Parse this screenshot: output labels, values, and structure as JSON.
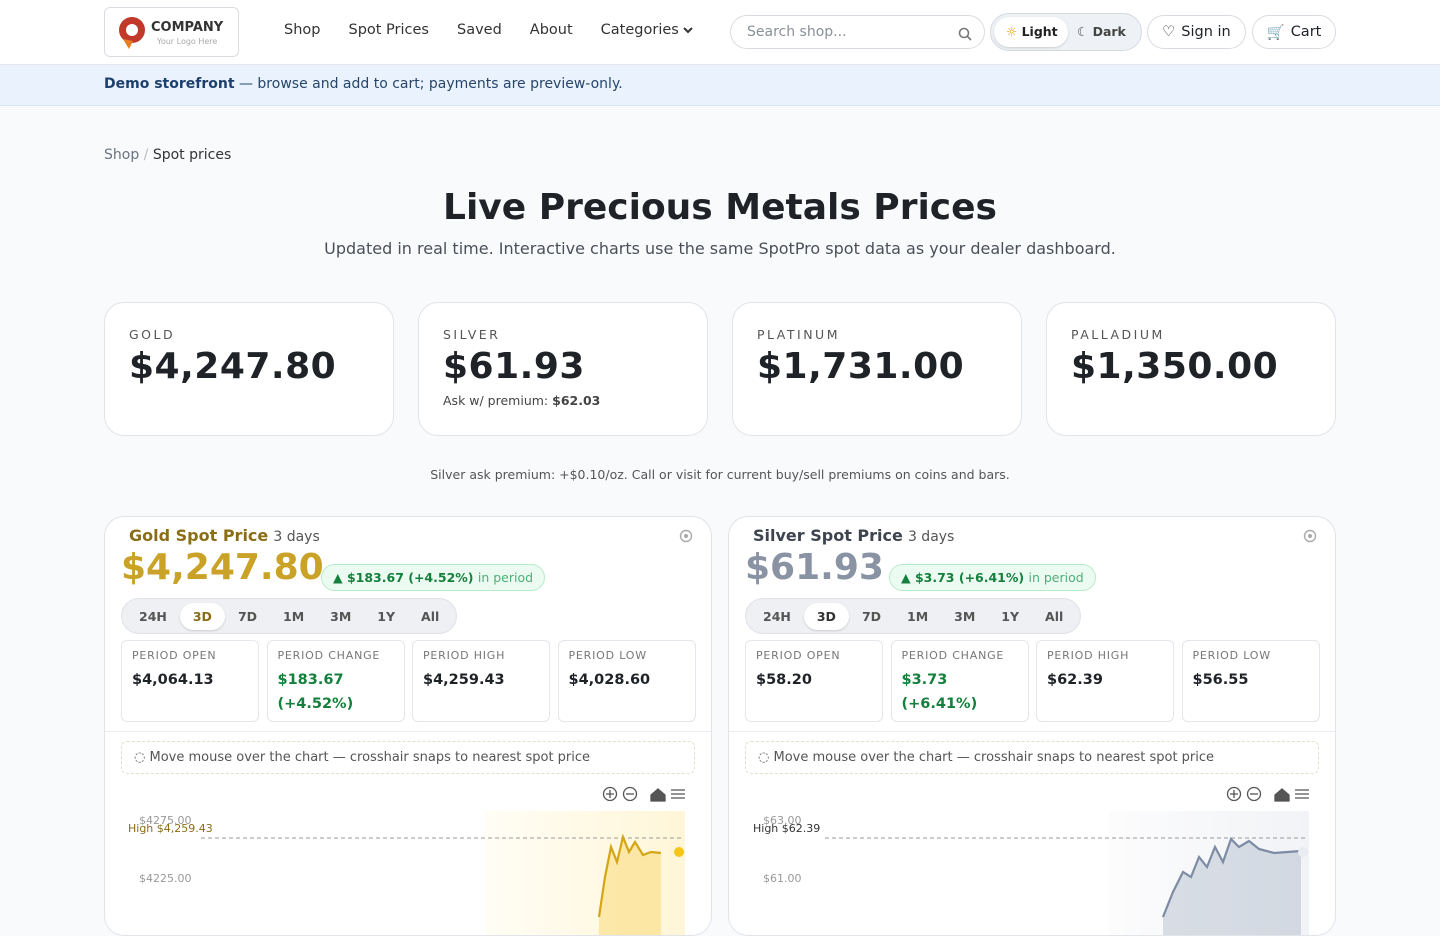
{
  "header": {
    "logo": {
      "name": "COMPANY",
      "tagline": "Your Logo Here"
    },
    "nav": [
      "Shop",
      "Spot Prices",
      "Saved",
      "About",
      "Categories"
    ],
    "search_placeholder": "Search shop...",
    "theme": [
      "Light",
      "Dark"
    ],
    "sign_in": "Sign in",
    "cart": "Cart"
  },
  "banner": {
    "strong": "Demo storefront",
    "text": "— browse and add to cart; payments are preview-only."
  },
  "breadcrumb": [
    "Shop",
    "Spot prices"
  ],
  "hero": {
    "title": "Live Precious Metals Prices",
    "subtitle": "Updated in real time. Interactive charts use the same SpotPro spot data as your dealer dashboard."
  },
  "cards": [
    {
      "label": "GOLD",
      "price": "$4,247.80"
    },
    {
      "label": "SILVER",
      "price": "$61.93",
      "note_label": "Ask w/ premium:",
      "note_value": "$62.03"
    },
    {
      "label": "PLATINUM",
      "price": "$1,731.00"
    },
    {
      "label": "PALLADIUM",
      "price": "$1,350.00"
    }
  ],
  "premium_note": "Silver ask premium: +$0.10/oz. Call or visit for current buy/sell premiums on coins and bars.",
  "panels": [
    {
      "title": "Gold Spot Price",
      "period": "3 days",
      "price": "$4,247.80",
      "change": "▲ $183.67 (+4.52%)",
      "change_suffix": "in period",
      "ranges": [
        "24H",
        "3D",
        "7D",
        "1M",
        "3M",
        "1Y",
        "All"
      ],
      "stats": [
        {
          "label": "PERIOD OPEN",
          "value": "$4,064.13"
        },
        {
          "label": "PERIOD CHANGE",
          "value": "$183.67 (+4.52%)"
        },
        {
          "label": "PERIOD HIGH",
          "value": "$4,259.43"
        },
        {
          "label": "PERIOD LOW",
          "value": "$4,028.60"
        }
      ],
      "hint": "Move mouse over the chart — crosshair snaps to nearest spot price",
      "chart": {
        "yticks": [
          "$4275.00",
          "$4225.00"
        ],
        "high_label": "High $4,259.43"
      }
    },
    {
      "title": "Silver Spot Price",
      "period": "3 days",
      "price": "$61.93",
      "change": "▲ $3.73 (+6.41%)",
      "change_suffix": "in period",
      "ranges": [
        "24H",
        "3D",
        "7D",
        "1M",
        "3M",
        "1Y",
        "All"
      ],
      "stats": [
        {
          "label": "PERIOD OPEN",
          "value": "$58.20"
        },
        {
          "label": "PERIOD CHANGE",
          "value": "$3.73 (+6.41%)"
        },
        {
          "label": "PERIOD HIGH",
          "value": "$62.39"
        },
        {
          "label": "PERIOD LOW",
          "value": "$56.55"
        }
      ],
      "hint": "Move mouse over the chart — crosshair snaps to nearest spot price",
      "chart": {
        "yticks": [
          "$63.00",
          "$61.00"
        ],
        "high_label": "High $62.39"
      }
    }
  ]
}
